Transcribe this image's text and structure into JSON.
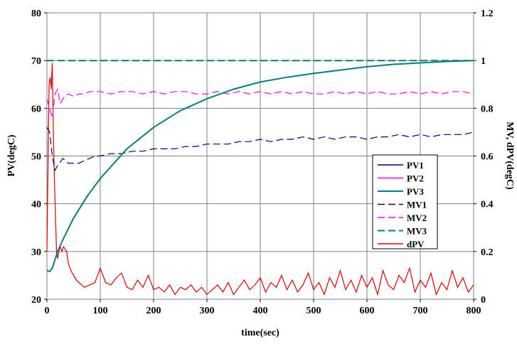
{
  "chart_data": {
    "type": "line",
    "xlabel": "time(sec)",
    "ylabel_left": "PV(degC)",
    "ylabel_right": "MV, dPV(degC)",
    "x_range": [
      0,
      800
    ],
    "y_left_range": [
      20,
      80
    ],
    "y_right_range": [
      0,
      1.2
    ],
    "x_ticks": [
      "0",
      "100",
      "200",
      "300",
      "400",
      "500",
      "600",
      "700",
      "800"
    ],
    "y_left_ticks": [
      "20",
      "30",
      "40",
      "50",
      "60",
      "70",
      "80"
    ],
    "y_right_ticks": [
      "0",
      "0.2",
      "0.4",
      "0.6",
      "0.8",
      "1",
      "1.2"
    ],
    "grid": true,
    "legend_position": "right",
    "series": [
      {
        "name": "PV1",
        "axis": "left",
        "color": "#000080",
        "dash": "solid",
        "x": [
          0,
          5,
          10,
          20,
          30,
          50,
          75,
          100,
          150,
          200,
          250,
          300,
          350,
          400,
          450,
          500,
          550,
          600,
          650,
          700,
          750,
          800
        ],
        "y": [
          26,
          25.8,
          26.5,
          30,
          32.5,
          37,
          41.5,
          45.3,
          51.5,
          56,
          59.5,
          62,
          64,
          65.5,
          66.5,
          67.3,
          68,
          68.7,
          69.2,
          69.5,
          69.8,
          70
        ]
      },
      {
        "name": "PV2",
        "axis": "left",
        "color": "#ff00ff",
        "dash": "solid",
        "x": [
          0,
          5,
          10,
          20,
          30,
          50,
          75,
          100,
          150,
          200,
          250,
          300,
          350,
          400,
          450,
          500,
          550,
          600,
          650,
          700,
          750,
          800
        ],
        "y": [
          26,
          25.8,
          26.5,
          30,
          32.5,
          37,
          41.5,
          45.3,
          51.5,
          56,
          59.5,
          62,
          64,
          65.5,
          66.5,
          67.3,
          68,
          68.7,
          69.2,
          69.5,
          69.8,
          70
        ]
      },
      {
        "name": "PV3",
        "axis": "left",
        "color": "#008080",
        "dash": "solid",
        "x": [
          0,
          5,
          10,
          20,
          30,
          50,
          75,
          100,
          150,
          200,
          250,
          300,
          350,
          400,
          450,
          500,
          550,
          600,
          650,
          700,
          750,
          800
        ],
        "y": [
          26,
          25.8,
          26.5,
          30,
          32.5,
          37,
          41.5,
          45.3,
          51.5,
          56,
          59.5,
          62,
          64,
          65.5,
          66.5,
          67.3,
          68,
          68.7,
          69.2,
          69.5,
          69.8,
          70
        ]
      },
      {
        "name": "MV1",
        "axis": "right",
        "color": "#000080",
        "dash": "long",
        "x": [
          0,
          5,
          10,
          15,
          20,
          30,
          40,
          50,
          60,
          70,
          80,
          90,
          100,
          120,
          140,
          160,
          180,
          200,
          220,
          240,
          260,
          280,
          300,
          320,
          340,
          360,
          380,
          400,
          420,
          440,
          460,
          480,
          500,
          520,
          540,
          560,
          580,
          600,
          620,
          640,
          660,
          680,
          700,
          720,
          740,
          760,
          780,
          800
        ],
        "y": [
          0.72,
          0.7,
          0.6,
          0.54,
          0.56,
          0.59,
          0.57,
          0.57,
          0.57,
          0.58,
          0.59,
          0.6,
          0.6,
          0.61,
          0.61,
          0.62,
          0.62,
          0.63,
          0.63,
          0.63,
          0.64,
          0.64,
          0.65,
          0.65,
          0.65,
          0.66,
          0.66,
          0.67,
          0.66,
          0.67,
          0.67,
          0.68,
          0.67,
          0.68,
          0.67,
          0.68,
          0.68,
          0.67,
          0.68,
          0.68,
          0.69,
          0.68,
          0.69,
          0.68,
          0.69,
          0.69,
          0.69,
          0.7
        ]
      },
      {
        "name": "MV2",
        "axis": "right",
        "color": "#ff00ff",
        "dash": "long",
        "x": [
          0,
          5,
          10,
          15,
          20,
          25,
          30,
          40,
          50,
          60,
          70,
          80,
          100,
          120,
          140,
          160,
          180,
          200,
          220,
          240,
          260,
          280,
          300,
          320,
          340,
          360,
          380,
          400,
          420,
          440,
          460,
          480,
          500,
          520,
          540,
          560,
          580,
          600,
          620,
          640,
          660,
          680,
          700,
          720,
          740,
          760,
          780,
          800
        ],
        "y": [
          0.84,
          0.8,
          0.76,
          0.86,
          0.88,
          0.82,
          0.84,
          0.86,
          0.85,
          0.86,
          0.86,
          0.87,
          0.87,
          0.86,
          0.87,
          0.87,
          0.86,
          0.87,
          0.86,
          0.87,
          0.87,
          0.86,
          0.86,
          0.87,
          0.86,
          0.87,
          0.86,
          0.87,
          0.86,
          0.87,
          0.86,
          0.87,
          0.86,
          0.86,
          0.87,
          0.86,
          0.87,
          0.86,
          0.87,
          0.86,
          0.86,
          0.87,
          0.86,
          0.87,
          0.86,
          0.87,
          0.87,
          0.86
        ]
      },
      {
        "name": "MV3",
        "axis": "right",
        "color": "#008080",
        "dash": "long",
        "x": [
          0,
          800
        ],
        "y": [
          1,
          1
        ]
      },
      {
        "name": "dPV",
        "axis": "right",
        "color": "#e00000",
        "dash": "solid",
        "x": [
          0,
          2,
          4,
          6,
          8,
          10,
          12,
          14,
          16,
          18,
          20,
          22,
          25,
          28,
          31,
          34,
          37,
          40,
          45,
          50,
          55,
          60,
          70,
          80,
          90,
          100,
          110,
          120,
          130,
          140,
          150,
          160,
          170,
          180,
          190,
          200,
          210,
          220,
          230,
          240,
          250,
          260,
          270,
          280,
          290,
          300,
          310,
          320,
          330,
          340,
          350,
          360,
          370,
          380,
          390,
          400,
          410,
          420,
          430,
          440,
          450,
          460,
          470,
          480,
          490,
          500,
          510,
          520,
          530,
          540,
          550,
          560,
          570,
          580,
          590,
          600,
          610,
          620,
          630,
          640,
          650,
          660,
          670,
          680,
          690,
          700,
          710,
          720,
          730,
          740,
          750,
          760,
          770,
          780,
          790,
          800
        ],
        "y": [
          0.2,
          0.55,
          0.9,
          0.93,
          0.88,
          0.99,
          0.7,
          0.5,
          0.35,
          0.2,
          0.17,
          0.2,
          0.22,
          0.2,
          0.22,
          0.21,
          0.2,
          0.15,
          0.12,
          0.1,
          0.08,
          0.07,
          0.05,
          0.06,
          0.07,
          0.13,
          0.07,
          0.06,
          0.09,
          0.11,
          0.05,
          0.04,
          0.08,
          0.05,
          0.1,
          0.04,
          0.05,
          0.03,
          0.06,
          0.02,
          0.05,
          0.04,
          0.06,
          0.03,
          0.05,
          0.02,
          0.04,
          0.06,
          0.03,
          0.07,
          0.02,
          0.05,
          0.08,
          0.04,
          0.06,
          0.09,
          0.03,
          0.07,
          0.05,
          0.1,
          0.04,
          0.08,
          0.03,
          0.06,
          0.11,
          0.04,
          0.07,
          0.02,
          0.09,
          0.05,
          0.12,
          0.04,
          0.08,
          0.03,
          0.1,
          0.05,
          0.09,
          0.02,
          0.12,
          0.06,
          0.04,
          0.1,
          0.07,
          0.13,
          0.03,
          0.08,
          0.05,
          0.11,
          0.02,
          0.07,
          0.04,
          0.12,
          0.05,
          0.09,
          0.03,
          0.06
        ]
      }
    ]
  }
}
